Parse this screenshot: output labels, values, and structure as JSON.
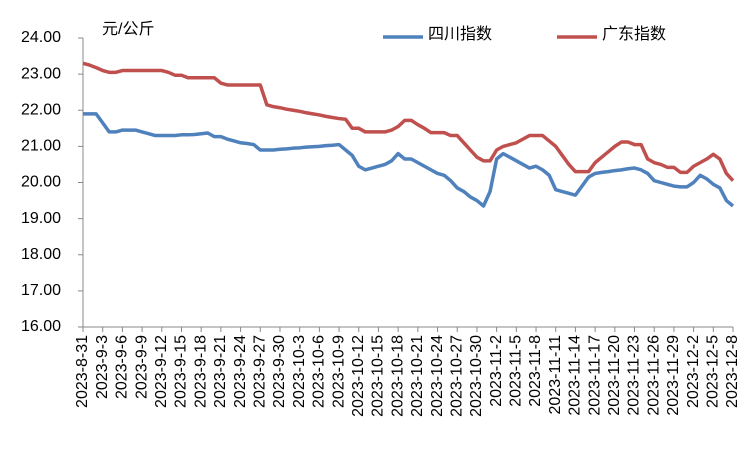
{
  "chart_data": {
    "type": "line",
    "y_label": "元/公斤",
    "categories": [
      "2023-8-31",
      null,
      null,
      "2023-9-3",
      null,
      null,
      "2023-9-6",
      null,
      null,
      "2023-9-9",
      null,
      null,
      "2023-9-12",
      null,
      null,
      "2023-9-15",
      null,
      null,
      "2023-9-18",
      null,
      null,
      "2023-9-21",
      null,
      null,
      "2023-9-24",
      null,
      null,
      "2023-9-27",
      null,
      null,
      "2023-9-30",
      null,
      null,
      "2023-10-3",
      null,
      null,
      "2023-10-6",
      null,
      null,
      "2023-10-9",
      null,
      null,
      "2023-10-12",
      null,
      null,
      "2023-10-15",
      null,
      null,
      "2023-10-18",
      null,
      null,
      "2023-10-21",
      null,
      null,
      "2023-10-24",
      null,
      null,
      "2023-10-27",
      null,
      null,
      "2023-10-30",
      null,
      null,
      "2023-11-2",
      null,
      null,
      "2023-11-5",
      null,
      null,
      "2023-11-8",
      null,
      null,
      "2023-11-11",
      null,
      null,
      "2023-11-14",
      null,
      null,
      "2023-11-17",
      null,
      null,
      "2023-11-20",
      null,
      null,
      "2023-11-23",
      null,
      null,
      "2023-11-26",
      null,
      null,
      "2023-11-29",
      null,
      null,
      "2023-12-2",
      null,
      null,
      "2023-12-5",
      null,
      null,
      "2023-12-8"
    ],
    "series": [
      {
        "name": "四川指数",
        "color": "#4f81bd",
        "values": [
          21.9,
          21.9,
          21.9,
          21.65,
          21.4,
          21.4,
          21.45,
          21.45,
          21.45,
          21.4,
          21.35,
          21.3,
          21.3,
          21.3,
          21.3,
          21.32,
          21.32,
          21.33,
          21.35,
          21.37,
          21.27,
          21.27,
          21.2,
          21.15,
          21.1,
          21.08,
          21.05,
          20.9,
          20.9,
          20.9,
          20.92,
          20.93,
          20.95,
          20.96,
          20.98,
          20.99,
          21.0,
          21.02,
          21.03,
          21.05,
          20.9,
          20.75,
          20.45,
          20.35,
          20.4,
          20.45,
          20.5,
          20.6,
          20.8,
          20.65,
          20.65,
          20.55,
          20.45,
          20.35,
          20.25,
          20.2,
          20.05,
          19.85,
          19.75,
          19.6,
          19.5,
          19.35,
          19.75,
          20.65,
          20.8,
          20.7,
          20.6,
          20.5,
          20.4,
          20.45,
          20.35,
          20.2,
          19.8,
          19.75,
          19.7,
          19.65,
          19.9,
          20.15,
          20.25,
          20.28,
          20.3,
          20.33,
          20.35,
          20.38,
          20.4,
          20.35,
          20.25,
          20.05,
          20.0,
          19.95,
          19.9,
          19.88,
          19.88,
          20.0,
          20.2,
          20.1,
          19.95,
          19.85,
          19.5,
          19.35
        ]
      },
      {
        "name": "广东指数",
        "color": "#c0504d",
        "values": [
          23.3,
          23.25,
          23.18,
          23.1,
          23.05,
          23.05,
          23.1,
          23.1,
          23.1,
          23.1,
          23.1,
          23.1,
          23.1,
          23.05,
          22.97,
          22.97,
          22.9,
          22.9,
          22.9,
          22.9,
          22.9,
          22.75,
          22.7,
          22.7,
          22.7,
          22.7,
          22.7,
          22.7,
          22.15,
          22.1,
          22.07,
          22.03,
          22.0,
          21.97,
          21.93,
          21.9,
          21.87,
          21.83,
          21.8,
          21.77,
          21.75,
          21.5,
          21.5,
          21.4,
          21.4,
          21.4,
          21.4,
          21.45,
          21.55,
          21.72,
          21.72,
          21.6,
          21.5,
          21.38,
          21.38,
          21.38,
          21.3,
          21.3,
          21.1,
          20.9,
          20.7,
          20.6,
          20.6,
          20.9,
          21.0,
          21.05,
          21.1,
          21.2,
          21.3,
          21.3,
          21.3,
          21.15,
          21.0,
          20.75,
          20.5,
          20.3,
          20.3,
          20.3,
          20.55,
          20.7,
          20.85,
          21.0,
          21.12,
          21.12,
          21.05,
          21.05,
          20.65,
          20.55,
          20.5,
          20.42,
          20.42,
          20.28,
          20.28,
          20.45,
          20.55,
          20.65,
          20.78,
          20.65,
          20.25,
          20.05
        ]
      }
    ],
    "ylim": [
      16,
      24
    ],
    "yticks": [
      {
        "value": 16,
        "label": "16.00"
      },
      {
        "value": 17,
        "label": "17.00"
      },
      {
        "value": 18,
        "label": "18.00"
      },
      {
        "value": 19,
        "label": "19.00"
      },
      {
        "value": 20,
        "label": "20.00"
      },
      {
        "value": 21,
        "label": "21.00"
      },
      {
        "value": 22,
        "label": "22.00"
      },
      {
        "value": 23,
        "label": "23.00"
      },
      {
        "value": 24,
        "label": "24.00"
      }
    ],
    "grid": false,
    "legend": "top"
  }
}
